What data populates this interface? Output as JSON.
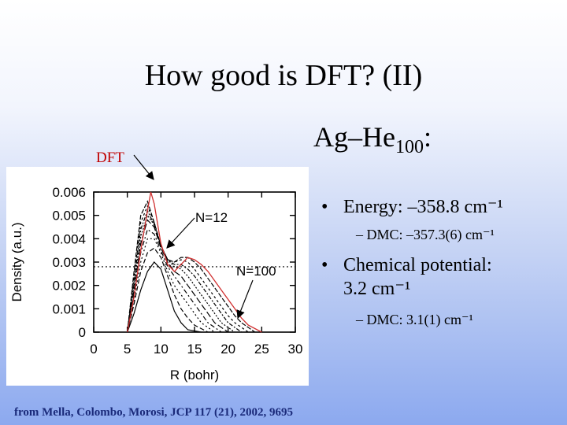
{
  "slide": {
    "title": "How good is DFT? (II)",
    "subtitle_main": "Ag–He",
    "subtitle_sub": "100",
    "subtitle_tail": ":",
    "dft_label": "DFT",
    "bullets": [
      {
        "text": "Energy: –358.8 cm⁻¹",
        "sub": "– DMC: –357.3(6) cm⁻¹"
      },
      {
        "text_line1": "Chemical potential:",
        "text_line2": "3.2 cm⁻¹",
        "sub": "– DMC: 3.1(1) cm⁻¹"
      }
    ],
    "bullet_symbol": "•",
    "citation": "from Mella, Colombo, Morosi, JCP 117 (21), 2002, 9695"
  },
  "chart_data": {
    "type": "line",
    "xlabel": "R (bohr)",
    "ylabel": "Density (a.u.)",
    "xlim": [
      0,
      30
    ],
    "ylim": [
      0,
      0.006
    ],
    "x_ticks": [
      "0",
      "5",
      "10",
      "15",
      "20",
      "25",
      "30"
    ],
    "y_ticks": [
      "0",
      "0.001",
      "0.002",
      "0.003",
      "0.004",
      "0.005",
      "0.006"
    ],
    "annotations": [
      "N=12",
      "N=100"
    ],
    "reference_line_y": 0.0028,
    "colors": {
      "dft": "#d03030",
      "dmc": "#000000"
    },
    "series": [
      {
        "style": "dmc",
        "points": [
          [
            5,
            0
          ],
          [
            6,
            0.0008
          ],
          [
            7,
            0.0018
          ],
          [
            8,
            0.0026
          ],
          [
            9,
            0.003
          ],
          [
            10,
            0.0027
          ],
          [
            11,
            0.0018
          ],
          [
            12,
            0.0009
          ],
          [
            13,
            0.0004
          ],
          [
            14,
            0.0001
          ],
          [
            16,
            0
          ]
        ]
      },
      {
        "style": "dmc",
        "points": [
          [
            5,
            0
          ],
          [
            6,
            0.0012
          ],
          [
            7,
            0.0026
          ],
          [
            8,
            0.0034
          ],
          [
            9,
            0.0036
          ],
          [
            10,
            0.0032
          ],
          [
            11,
            0.0024
          ],
          [
            12,
            0.0016
          ],
          [
            13,
            0.001
          ],
          [
            14,
            0.0006
          ],
          [
            15,
            0.0003
          ],
          [
            17,
            0
          ]
        ]
      },
      {
        "style": "dmc",
        "points": [
          [
            5,
            0
          ],
          [
            6,
            0.0014
          ],
          [
            7,
            0.003
          ],
          [
            8,
            0.004
          ],
          [
            9,
            0.004
          ],
          [
            10,
            0.0034
          ],
          [
            11,
            0.0026
          ],
          [
            12,
            0.002
          ],
          [
            13,
            0.0016
          ],
          [
            14,
            0.0012
          ],
          [
            15,
            0.0008
          ],
          [
            16,
            0.0004
          ],
          [
            18,
            0
          ]
        ]
      },
      {
        "style": "dmc",
        "points": [
          [
            5,
            0
          ],
          [
            6,
            0.0016
          ],
          [
            7,
            0.0034
          ],
          [
            8,
            0.0044
          ],
          [
            9,
            0.0042
          ],
          [
            10,
            0.0035
          ],
          [
            11,
            0.0028
          ],
          [
            12,
            0.0024
          ],
          [
            13,
            0.002
          ],
          [
            14,
            0.0016
          ],
          [
            15,
            0.0012
          ],
          [
            16,
            0.0008
          ],
          [
            17,
            0.0004
          ],
          [
            19,
            0
          ]
        ]
      },
      {
        "style": "dmc",
        "points": [
          [
            5,
            0
          ],
          [
            6,
            0.0018
          ],
          [
            7,
            0.0038
          ],
          [
            8,
            0.0048
          ],
          [
            9,
            0.0045
          ],
          [
            10,
            0.0036
          ],
          [
            11,
            0.003
          ],
          [
            12,
            0.0026
          ],
          [
            13,
            0.0024
          ],
          [
            14,
            0.002
          ],
          [
            15,
            0.0016
          ],
          [
            16,
            0.0012
          ],
          [
            17,
            0.0008
          ],
          [
            18,
            0.0004
          ],
          [
            20,
            0
          ]
        ]
      },
      {
        "style": "dmc",
        "points": [
          [
            5,
            0
          ],
          [
            6,
            0.002
          ],
          [
            7,
            0.0041
          ],
          [
            8,
            0.005
          ],
          [
            9,
            0.0046
          ],
          [
            10,
            0.0037
          ],
          [
            11,
            0.0031
          ],
          [
            12,
            0.0028
          ],
          [
            13,
            0.0027
          ],
          [
            14,
            0.0024
          ],
          [
            15,
            0.002
          ],
          [
            16,
            0.0016
          ],
          [
            17,
            0.0012
          ],
          [
            18,
            0.0008
          ],
          [
            19,
            0.0004
          ],
          [
            21,
            0
          ]
        ]
      },
      {
        "style": "dmc",
        "points": [
          [
            5,
            0
          ],
          [
            6,
            0.0022
          ],
          [
            7,
            0.0044
          ],
          [
            8,
            0.0052
          ],
          [
            9,
            0.0046
          ],
          [
            10,
            0.0037
          ],
          [
            11,
            0.0031
          ],
          [
            12,
            0.0029
          ],
          [
            13,
            0.0029
          ],
          [
            14,
            0.0027
          ],
          [
            15,
            0.0024
          ],
          [
            16,
            0.002
          ],
          [
            17,
            0.0016
          ],
          [
            18,
            0.0012
          ],
          [
            19,
            0.0008
          ],
          [
            20,
            0.0004
          ],
          [
            22,
            0
          ]
        ]
      },
      {
        "style": "dmc",
        "points": [
          [
            5,
            0
          ],
          [
            6,
            0.0024
          ],
          [
            7,
            0.0047
          ],
          [
            8,
            0.0054
          ],
          [
            9,
            0.0047
          ],
          [
            10,
            0.0037
          ],
          [
            11,
            0.0031
          ],
          [
            12,
            0.003
          ],
          [
            13,
            0.0031
          ],
          [
            14,
            0.003
          ],
          [
            15,
            0.0027
          ],
          [
            16,
            0.0023
          ],
          [
            17,
            0.0019
          ],
          [
            18,
            0.0015
          ],
          [
            19,
            0.0011
          ],
          [
            20,
            0.0007
          ],
          [
            21,
            0.0004
          ],
          [
            23,
            0
          ]
        ]
      },
      {
        "style": "dmc",
        "points": [
          [
            5,
            0
          ],
          [
            6,
            0.0026
          ],
          [
            7,
            0.005
          ],
          [
            8,
            0.0056
          ],
          [
            9,
            0.0047
          ],
          [
            10,
            0.0037
          ],
          [
            11,
            0.0031
          ],
          [
            12,
            0.003
          ],
          [
            13,
            0.0032
          ],
          [
            14,
            0.0032
          ],
          [
            15,
            0.003
          ],
          [
            16,
            0.0027
          ],
          [
            17,
            0.0023
          ],
          [
            18,
            0.0019
          ],
          [
            19,
            0.0015
          ],
          [
            20,
            0.0011
          ],
          [
            21,
            0.0007
          ],
          [
            22,
            0.0004
          ],
          [
            24,
            0
          ]
        ]
      },
      {
        "style": "dft",
        "points": [
          [
            5,
            0
          ],
          [
            6,
            0.0015
          ],
          [
            7,
            0.0035
          ],
          [
            8,
            0.0052
          ],
          [
            8.5,
            0.006
          ],
          [
            9,
            0.0055
          ],
          [
            10,
            0.0038
          ],
          [
            11,
            0.0029
          ],
          [
            12,
            0.0026
          ],
          [
            13,
            0.0029
          ],
          [
            14,
            0.0032
          ],
          [
            15,
            0.0031
          ],
          [
            16,
            0.0029
          ],
          [
            17,
            0.0026
          ],
          [
            18,
            0.0022
          ],
          [
            19,
            0.0018
          ],
          [
            20,
            0.0014
          ],
          [
            21,
            0.001
          ],
          [
            22,
            0.0006
          ],
          [
            23,
            0.0003
          ],
          [
            25,
            0
          ]
        ]
      }
    ]
  }
}
